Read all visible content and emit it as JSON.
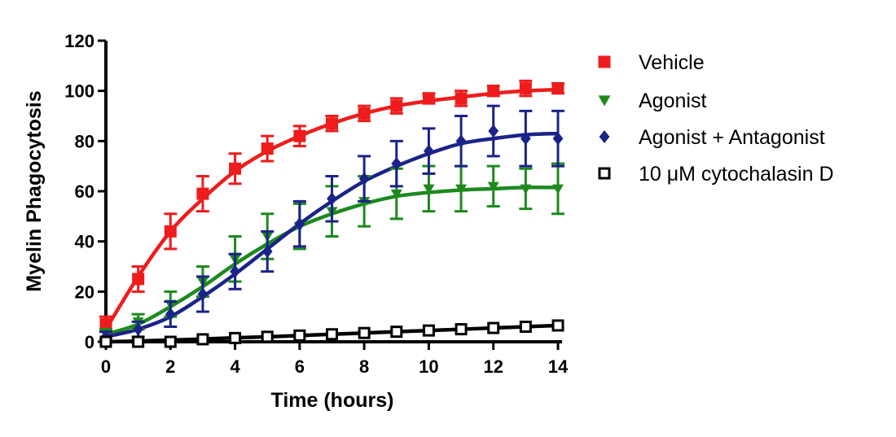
{
  "chart_data": {
    "type": "line",
    "title": "",
    "xlabel": "Time (hours)",
    "ylabel": "Myelin Phagocytosis",
    "xlim": [
      0,
      14
    ],
    "ylim": [
      0,
      120
    ],
    "xticks": [
      0,
      2,
      4,
      6,
      8,
      10,
      12,
      14
    ],
    "yticks": [
      0,
      20,
      40,
      60,
      80,
      100,
      120
    ],
    "grid": false,
    "legend_position": "right",
    "x": [
      0,
      1,
      2,
      3,
      4,
      5,
      6,
      7,
      8,
      9,
      10,
      11,
      12,
      13,
      14
    ],
    "series": [
      {
        "name": "Vehicle",
        "color": "#ee1c1c",
        "marker": "square",
        "values": [
          7,
          25,
          44,
          59,
          69,
          77,
          82,
          87,
          91,
          94,
          97,
          97,
          100,
          101,
          101
        ],
        "errors": [
          3,
          5,
          7,
          7,
          6,
          5,
          4,
          3,
          3,
          3,
          2,
          3,
          2,
          3,
          2
        ],
        "fit": [
          5,
          26,
          44,
          57,
          68,
          76,
          82,
          87,
          91,
          94,
          96,
          97.5,
          99,
          100,
          100.5
        ]
      },
      {
        "name": "Agonist",
        "color": "#1d8a1d",
        "marker": "triangle-down",
        "values": [
          3,
          8,
          15,
          24,
          33,
          42,
          46,
          52,
          56,
          59,
          61,
          61,
          62,
          61,
          61
        ],
        "errors": [
          2,
          3,
          5,
          6,
          9,
          9,
          9,
          10,
          10,
          10,
          9,
          9,
          8,
          8,
          10
        ],
        "fit": [
          3,
          7,
          14,
          22,
          31,
          39,
          46,
          51,
          55,
          58,
          59.5,
          60.5,
          61,
          61.5,
          61.5
        ]
      },
      {
        "name": "Agonist + Antagonist",
        "color": "#1a2388",
        "marker": "diamond",
        "values": [
          2,
          5,
          11,
          19,
          28,
          36,
          47,
          57,
          65,
          71,
          76,
          80,
          84,
          81,
          81
        ],
        "errors": [
          2,
          3,
          5,
          7,
          7,
          8,
          9,
          9,
          9,
          9,
          9,
          10,
          10,
          11,
          11
        ],
        "fit": [
          2,
          5,
          10,
          18,
          27,
          37,
          47,
          56,
          64,
          70,
          75,
          79,
          81,
          82.5,
          83
        ]
      },
      {
        "name": "10 μM cytochalasin D",
        "color": "#000000",
        "marker": "open-square",
        "values": [
          0,
          0,
          0,
          1,
          1.5,
          2,
          2.5,
          3,
          3.5,
          4,
          4.5,
          5,
          5.5,
          6,
          6.5
        ],
        "errors": [
          0,
          0,
          0,
          0,
          0,
          0,
          0,
          0,
          0,
          0,
          0,
          0,
          0,
          0,
          0
        ],
        "fit": [
          0,
          0.3,
          0.7,
          1.1,
          1.6,
          2.0,
          2.5,
          3.0,
          3.5,
          4.0,
          4.5,
          5.0,
          5.5,
          6.0,
          6.5
        ]
      }
    ]
  }
}
